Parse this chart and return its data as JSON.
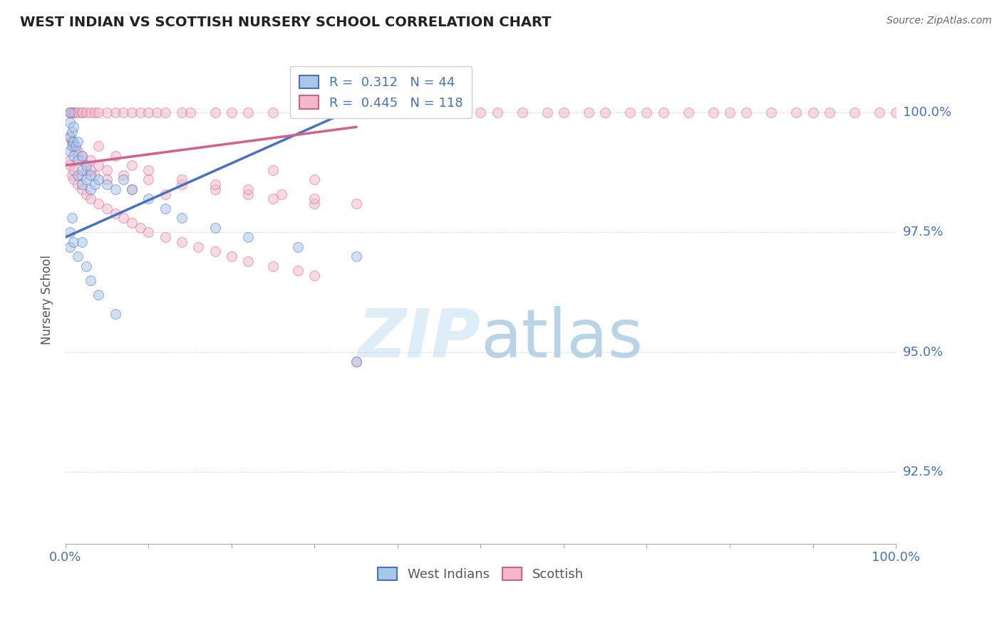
{
  "title": "WEST INDIAN VS SCOTTISH NURSERY SCHOOL CORRELATION CHART",
  "source": "Source: ZipAtlas.com",
  "ylabel": "Nursery School",
  "yticks": [
    92.5,
    95.0,
    97.5,
    100.0
  ],
  "ytick_labels": [
    "92.5%",
    "95.0%",
    "97.5%",
    "100.0%"
  ],
  "xlim": [
    0.0,
    100.0
  ],
  "ylim": [
    91.0,
    101.2
  ],
  "west_indians_color": "#a8c8e8",
  "scottish_color": "#f4b8cc",
  "blue_line_color": "#4472c4",
  "pink_line_color": "#d4608a",
  "background_color": "#ffffff",
  "grid_color": "#cccccc",
  "title_color": "#222222",
  "axis_label_color": "#4472c4",
  "watermark_color": "#ddeef8",
  "marker_size": 100,
  "marker_alpha": 0.55,
  "west_indians_x": [
    0.5,
    0.5,
    0.5,
    0.5,
    0.8,
    0.8,
    1.0,
    1.0,
    1.0,
    1.2,
    1.5,
    1.5,
    1.5,
    2.0,
    2.0,
    2.0,
    2.5,
    2.5,
    3.0,
    3.0,
    3.5,
    4.0,
    5.0,
    6.0,
    7.0,
    8.0,
    10.0,
    12.0,
    14.0,
    18.0,
    22.0,
    28.0,
    35.0,
    0.5,
    0.5,
    0.8,
    1.0,
    1.5,
    2.0,
    2.5,
    3.0,
    4.0,
    6.0,
    35.0
  ],
  "west_indians_y": [
    100.0,
    99.8,
    99.5,
    99.2,
    99.6,
    99.3,
    99.7,
    99.4,
    99.1,
    99.3,
    99.4,
    99.0,
    98.7,
    99.1,
    98.8,
    98.5,
    98.9,
    98.6,
    98.7,
    98.4,
    98.5,
    98.6,
    98.5,
    98.4,
    98.6,
    98.4,
    98.2,
    98.0,
    97.8,
    97.6,
    97.4,
    97.2,
    97.0,
    97.2,
    97.5,
    97.8,
    97.3,
    97.0,
    97.3,
    96.8,
    96.5,
    96.2,
    95.8,
    94.8
  ],
  "scottish_x": [
    0.5,
    0.5,
    0.8,
    1.0,
    1.0,
    1.2,
    1.5,
    2.0,
    2.0,
    2.5,
    3.0,
    3.5,
    4.0,
    5.0,
    6.0,
    7.0,
    8.0,
    9.0,
    10.0,
    11.0,
    12.0,
    14.0,
    15.0,
    18.0,
    20.0,
    22.0,
    25.0,
    28.0,
    30.0,
    32.0,
    35.0,
    38.0,
    40.0,
    42.0,
    45.0,
    48.0,
    50.0,
    52.0,
    55.0,
    58.0,
    60.0,
    63.0,
    65.0,
    68.0,
    70.0,
    72.0,
    75.0,
    78.0,
    80.0,
    82.0,
    85.0,
    88.0,
    90.0,
    92.0,
    95.0,
    98.0,
    100.0,
    0.5,
    0.8,
    1.0,
    1.5,
    2.0,
    3.0,
    4.0,
    5.0,
    7.0,
    10.0,
    14.0,
    18.0,
    22.0,
    25.0,
    30.0,
    4.0,
    6.0,
    8.0,
    10.0,
    14.0,
    18.0,
    22.0,
    26.0,
    30.0,
    35.0,
    2.5,
    3.5,
    5.0,
    8.0,
    12.0,
    0.8,
    1.2,
    2.0,
    3.0,
    25.0,
    30.0,
    0.5,
    0.8,
    1.0,
    1.5,
    2.0,
    2.5,
    3.0,
    4.0,
    5.0,
    6.0,
    7.0,
    8.0,
    9.0,
    10.0,
    12.0,
    14.0,
    16.0,
    18.0,
    20.0,
    22.0,
    25.0,
    28.0,
    30.0,
    0.5,
    1.0,
    2.0,
    35.0
  ],
  "scottish_y": [
    100.0,
    100.0,
    100.0,
    100.0,
    100.0,
    100.0,
    100.0,
    100.0,
    100.0,
    100.0,
    100.0,
    100.0,
    100.0,
    100.0,
    100.0,
    100.0,
    100.0,
    100.0,
    100.0,
    100.0,
    100.0,
    100.0,
    100.0,
    100.0,
    100.0,
    100.0,
    100.0,
    100.0,
    100.0,
    100.0,
    100.0,
    100.0,
    100.0,
    100.0,
    100.0,
    100.0,
    100.0,
    100.0,
    100.0,
    100.0,
    100.0,
    100.0,
    100.0,
    100.0,
    100.0,
    100.0,
    100.0,
    100.0,
    100.0,
    100.0,
    100.0,
    100.0,
    100.0,
    100.0,
    100.0,
    100.0,
    100.0,
    99.5,
    99.4,
    99.3,
    99.2,
    99.1,
    99.0,
    98.9,
    98.8,
    98.7,
    98.6,
    98.5,
    98.4,
    98.3,
    98.2,
    98.1,
    99.3,
    99.1,
    98.9,
    98.8,
    98.6,
    98.5,
    98.4,
    98.3,
    98.2,
    98.1,
    98.8,
    98.7,
    98.6,
    98.4,
    98.3,
    99.4,
    99.2,
    99.0,
    98.8,
    98.8,
    98.6,
    98.9,
    98.7,
    98.6,
    98.5,
    98.4,
    98.3,
    98.2,
    98.1,
    98.0,
    97.9,
    97.8,
    97.7,
    97.6,
    97.5,
    97.4,
    97.3,
    97.2,
    97.1,
    97.0,
    96.9,
    96.8,
    96.7,
    96.6,
    99.0,
    98.8,
    98.7,
    94.8
  ],
  "blue_line_x": [
    0,
    35
  ],
  "blue_line_y": [
    97.4,
    100.1
  ],
  "pink_line_x": [
    0,
    35
  ],
  "pink_line_y": [
    98.9,
    99.7
  ]
}
